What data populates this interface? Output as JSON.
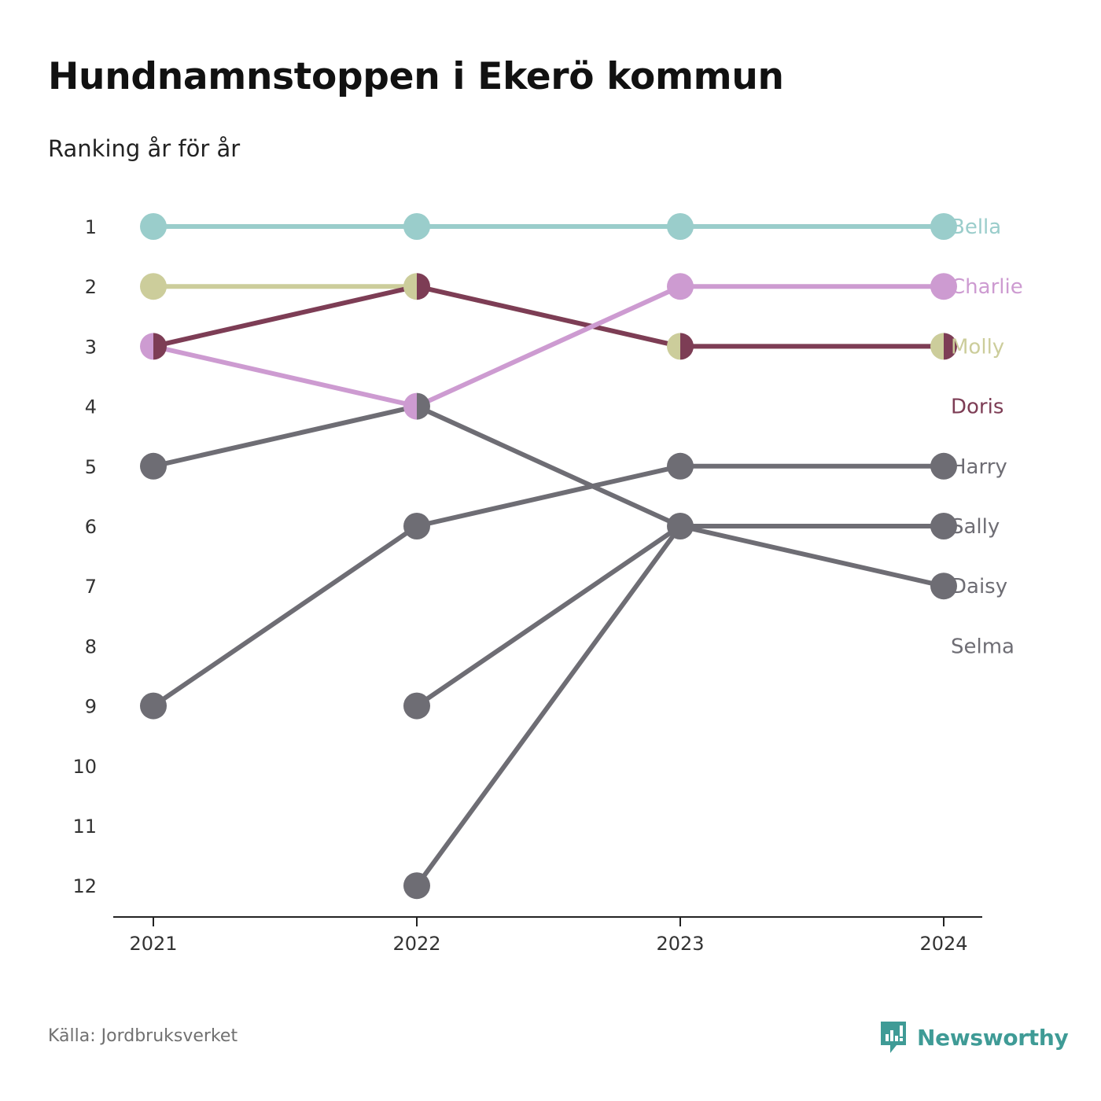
{
  "header": {
    "title": "Hundnamnstoppen i Ekerö kommun",
    "subtitle": "Ranking år för år"
  },
  "footer": {
    "source": "Källa: Jordbruksverket",
    "brand": "Newsworthy",
    "brand_icon": "newsworthy-logo-icon",
    "brand_color": "#3f9b96"
  },
  "chart_data": {
    "type": "line",
    "title": "Hundnamnstoppen i Ekerö kommun",
    "subtitle": "Ranking år för år",
    "x": [
      "2021",
      "2022",
      "2023",
      "2024"
    ],
    "y_ticks": [
      "1",
      "2",
      "3",
      "4",
      "5",
      "6",
      "7",
      "8",
      "9",
      "10",
      "11",
      "12"
    ],
    "ylim": [
      1,
      12
    ],
    "y_reversed": true,
    "grid": false,
    "legend": "end labels at right",
    "series": [
      {
        "name": "Bella",
        "color": "#9acdcb",
        "values": [
          1,
          1,
          1,
          1
        ]
      },
      {
        "name": "Charlie",
        "color": "#cd9bd1",
        "values": [
          3,
          4,
          2,
          2
        ]
      },
      {
        "name": "Molly",
        "color": "#cccd9b",
        "values": [
          2,
          2,
          3,
          3
        ]
      },
      {
        "name": "Doris",
        "color": "#7d3d55",
        "values": [
          3,
          2,
          3,
          3
        ]
      },
      {
        "name": "Harry",
        "color": "#6e6d74",
        "values": [
          9,
          6,
          5,
          5
        ]
      },
      {
        "name": "Sally",
        "color": "#6e6d74",
        "values": [
          null,
          9,
          6,
          6
        ]
      },
      {
        "name": "Daisy",
        "color": "#6e6d74",
        "values": [
          5,
          4,
          6,
          7
        ]
      },
      {
        "name": "Selma",
        "color": "#6e6d74",
        "values": [
          null,
          12,
          6,
          null
        ]
      }
    ]
  }
}
